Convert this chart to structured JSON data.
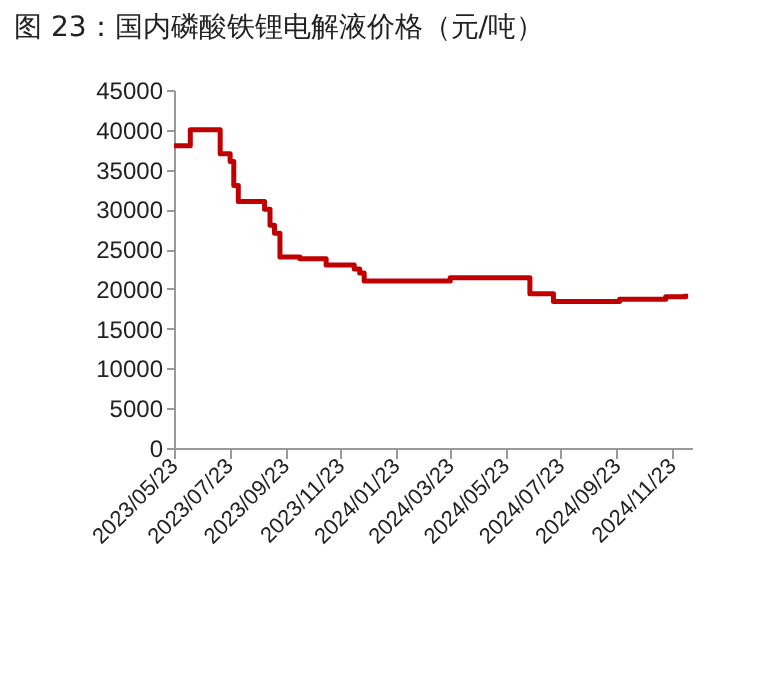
{
  "chart_data": {
    "type": "step",
    "title": "图 23：国内磷酸铁锂电解液价格（元/吨）",
    "x": [
      "2023-05-23",
      "2023-06-10",
      "2023-07-13",
      "2023-07-24",
      "2023-07-28",
      "2023-08-02",
      "2023-08-31",
      "2023-09-06",
      "2023-09-11",
      "2023-09-17",
      "2023-10-09",
      "2023-11-07",
      "2023-12-08",
      "2023-12-14",
      "2023-12-19",
      "2024-03-23",
      "2024-06-19",
      "2024-07-15",
      "2024-08-13",
      "2024-09-26",
      "2024-11-16",
      "2024-12-08"
    ],
    "series": [
      {
        "color": "#c00000",
        "values": [
          38000,
          40000,
          37000,
          36000,
          33000,
          31000,
          30000,
          28000,
          27000,
          24000,
          23800,
          23000,
          22500,
          22000,
          21000,
          21400,
          19400,
          18400,
          18400,
          18700,
          19000,
          19400
        ]
      }
    ],
    "xlim": [
      "2023-05-23",
      "2024-12-15"
    ],
    "xticks": [
      {
        "value": "2023-05-23",
        "label": "2023/05/23"
      },
      {
        "value": "2023-07-23",
        "label": "2023/07/23"
      },
      {
        "value": "2023-09-23",
        "label": "2023/09/23"
      },
      {
        "value": "2023-11-23",
        "label": "2023/11/23"
      },
      {
        "value": "2024-01-23",
        "label": "2024/01/23"
      },
      {
        "value": "2024-03-23",
        "label": "2024/03/23"
      },
      {
        "value": "2024-05-23",
        "label": "2024/05/23"
      },
      {
        "value": "2024-07-23",
        "label": "2024/07/23"
      },
      {
        "value": "2024-09-23",
        "label": "2024/09/23"
      },
      {
        "value": "2024-11-23",
        "label": "2024/11/23"
      }
    ],
    "ylim": [
      0,
      45000
    ],
    "yticks": [
      0,
      5000,
      10000,
      15000,
      20000,
      25000,
      30000,
      35000,
      40000,
      45000
    ],
    "grid": false,
    "marker": "none",
    "line_style": "solid"
  }
}
